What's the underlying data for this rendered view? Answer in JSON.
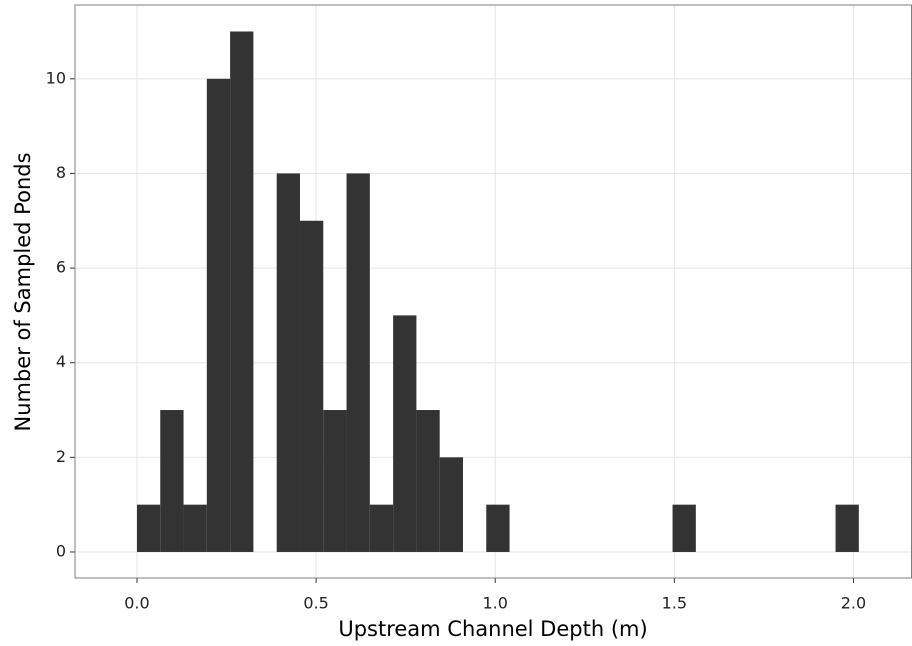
{
  "chart_data": {
    "type": "histogram",
    "x_label": "Upstream Channel Depth (m)",
    "y_label": "Number of Sampled Ponds",
    "bins": [
      0,
      0.065,
      0.13,
      0.195,
      0.26,
      0.325,
      0.39,
      0.455,
      0.52,
      0.585,
      0.65,
      0.715,
      0.78,
      0.845,
      0.91,
      0.975,
      1.04,
      1.105,
      1.17,
      1.235,
      1.3,
      1.365,
      1.43,
      1.495,
      1.56,
      1.625,
      1.69,
      1.755,
      1.82,
      1.885,
      1.95,
      2.015
    ],
    "values": [
      1,
      3,
      1,
      10,
      11,
      0,
      8,
      7,
      3,
      8,
      1,
      5,
      3,
      2,
      0,
      1,
      0,
      0,
      0,
      0,
      0,
      0,
      0,
      1,
      0,
      0,
      0,
      0,
      0,
      0,
      1
    ],
    "color": "#333333",
    "xlim": [
      -0.173,
      2.162
    ],
    "ylim": [
      -0.55,
      11.56
    ],
    "xticks": [
      {
        "value": 0,
        "label": "0.0"
      },
      {
        "value": 0.5,
        "label": "0.5"
      },
      {
        "value": 1,
        "label": "1.0"
      },
      {
        "value": 1.5,
        "label": "1.5"
      },
      {
        "value": 2,
        "label": "2.0"
      }
    ],
    "yticks": [
      0,
      2,
      4,
      6,
      8,
      10
    ],
    "grid": true
  }
}
